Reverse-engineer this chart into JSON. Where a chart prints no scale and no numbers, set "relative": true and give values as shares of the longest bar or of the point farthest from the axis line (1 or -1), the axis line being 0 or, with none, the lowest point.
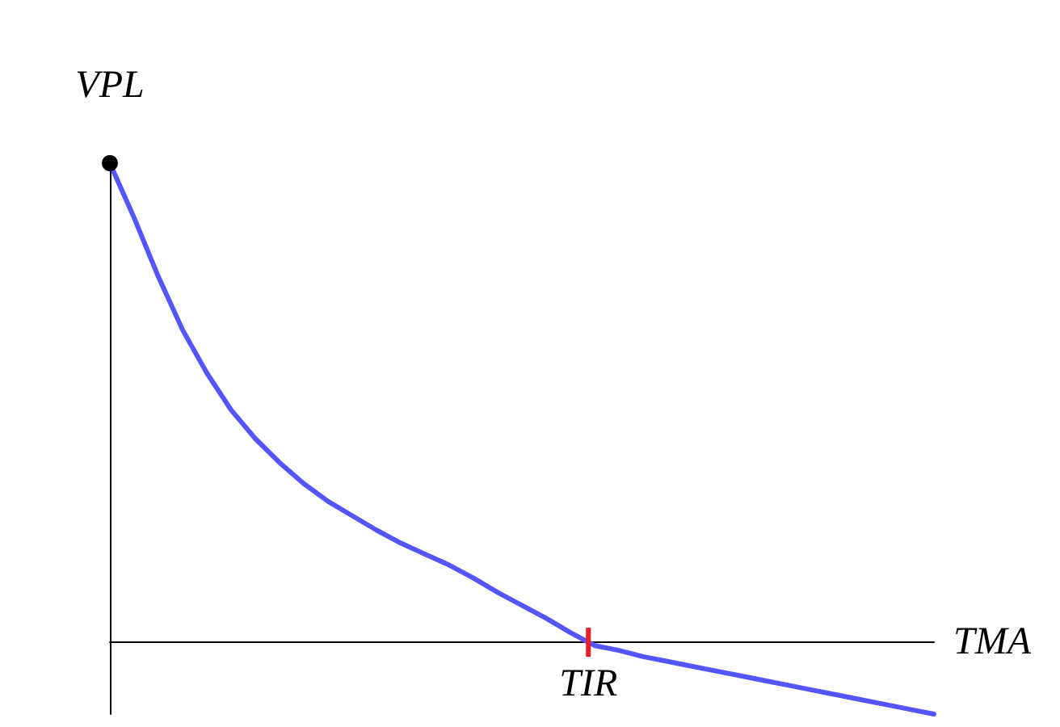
{
  "chart_data": {
    "type": "line",
    "relative": true,
    "xlabel": "TMA",
    "ylabel": "VPL",
    "categories": [
      null,
      null,
      null,
      null,
      null,
      null,
      null,
      null,
      null,
      null,
      null,
      null,
      null,
      null,
      null,
      null,
      null,
      null,
      null,
      null,
      null,
      null,
      null,
      null,
      null,
      null,
      null,
      null,
      null,
      null,
      null,
      null,
      null,
      null,
      null
    ],
    "series": [
      {
        "color": "#5555ff",
        "values": [
          1,
          0.886,
          0.763,
          0.652,
          0.562,
          0.485,
          0.425,
          0.375,
          0.331,
          0.294,
          0.264,
          0.234,
          0.207,
          0.184,
          0.161,
          0.134,
          0.104,
          0.077,
          0.05,
          0.02,
          -0.007,
          -0.017,
          -0.03,
          -0.04,
          -0.05,
          -0.06,
          -0.07,
          -0.08,
          -0.09,
          -0.1,
          -0.11,
          -0.12,
          -0.13,
          -0.14,
          -0.15
        ]
      },
      {
        "color": "#000000",
        "marker": "circle",
        "values": [
          1,
          null,
          null,
          null,
          null,
          null,
          null,
          null,
          null,
          null,
          null,
          null,
          null,
          null,
          null,
          null,
          null,
          null,
          null,
          null,
          null,
          null,
          null,
          null,
          null,
          null,
          null,
          null,
          null,
          null,
          null,
          null,
          null,
          null,
          null
        ]
      }
    ],
    "annotations": [
      "TIR"
    ],
    "marker": "none",
    "grid": false
  }
}
